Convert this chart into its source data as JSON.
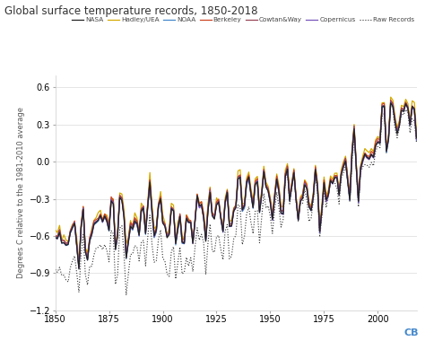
{
  "title": "Global surface temperature records, 1850-2018",
  "ylabel": "Degrees C relative to the 1981-2010 average",
  "xlim": [
    1850,
    2018
  ],
  "ylim": [
    -1.2,
    0.7
  ],
  "yticks": [
    0.6,
    0.3,
    0.0,
    -0.3,
    -0.6,
    -0.9,
    -1.2
  ],
  "xticks": [
    1850,
    1875,
    1900,
    1925,
    1950,
    1975,
    2000
  ],
  "series_order": [
    "NASA",
    "Hadley/UEA",
    "NOAA",
    "Berkeley",
    "Cowtan&Way",
    "Copernicus",
    "Raw Records"
  ],
  "series": {
    "NASA": {
      "color": "#222222",
      "lw": 0.9,
      "ls": "-",
      "zorder": 5
    },
    "Hadley/UEA": {
      "color": "#d4aa00",
      "lw": 0.9,
      "ls": "-",
      "zorder": 4
    },
    "NOAA": {
      "color": "#4488cc",
      "lw": 0.9,
      "ls": "-",
      "zorder": 4
    },
    "Berkeley": {
      "color": "#cc4422",
      "lw": 0.9,
      "ls": "-",
      "zorder": 4
    },
    "Cowtan&Way": {
      "color": "#994455",
      "lw": 0.9,
      "ls": "-",
      "zorder": 4
    },
    "Copernicus": {
      "color": "#7755bb",
      "lw": 0.9,
      "ls": "-",
      "zorder": 4
    },
    "Raw Records": {
      "color": "#333333",
      "lw": 0.8,
      "ls": ":",
      "zorder": 3
    }
  },
  "bg_color": "#ffffff",
  "grid_color": "#e0e0e0",
  "title_color": "#333333",
  "label_color": "#555555",
  "watermark": "CB",
  "watermark_color": "#4488cc"
}
